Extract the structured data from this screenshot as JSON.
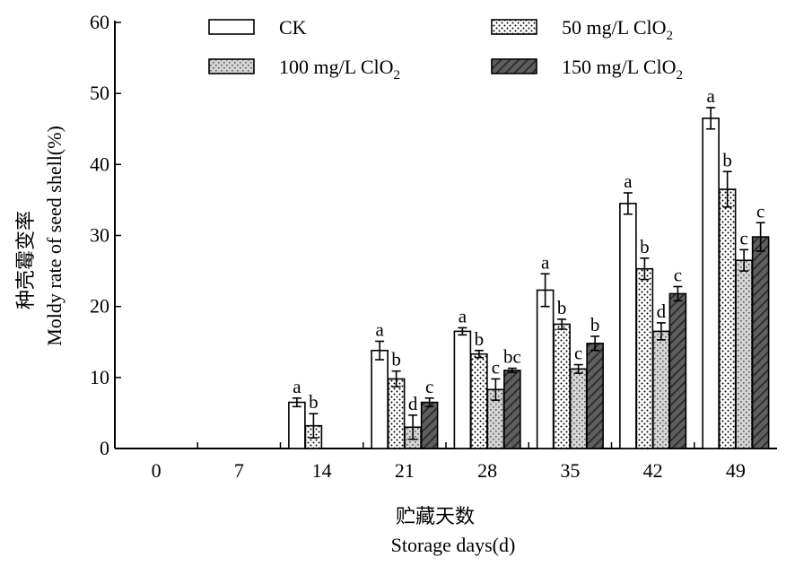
{
  "chart_data": {
    "type": "bar",
    "categories": [
      "0",
      "7",
      "14",
      "21",
      "28",
      "35",
      "42",
      "49"
    ],
    "series": [
      {
        "name": "CK",
        "fill": "white",
        "values": [
          0,
          0,
          6.5,
          13.8,
          16.5,
          22.3,
          34.5,
          46.5
        ],
        "errors": [
          0,
          0,
          0.6,
          1.3,
          0.5,
          2.3,
          1.5,
          1.5
        ],
        "letters": [
          "",
          "",
          "a",
          "a",
          "a",
          "a",
          "a",
          "a"
        ]
      },
      {
        "name": "50 mg/L ClO",
        "name_sub": "2",
        "fill": "dots",
        "values": [
          0,
          0,
          3.2,
          9.8,
          13.3,
          17.5,
          25.3,
          36.5
        ],
        "errors": [
          0,
          0,
          1.7,
          1.1,
          0.5,
          0.7,
          1.5,
          2.5
        ],
        "letters": [
          "",
          "",
          "b",
          "b",
          "b",
          "b",
          "b",
          "b"
        ]
      },
      {
        "name": "100 mg/L ClO",
        "name_sub": "2",
        "fill": "crosshatch",
        "values": [
          0,
          0,
          0,
          3.0,
          8.3,
          11.2,
          16.5,
          26.5
        ],
        "errors": [
          0,
          0,
          0,
          1.7,
          1.5,
          0.6,
          1.2,
          1.5
        ],
        "letters": [
          "",
          "",
          "",
          "d",
          "c",
          "c",
          "d",
          "c"
        ]
      },
      {
        "name": "150 mg/L ClO",
        "name_sub": "2",
        "fill": "stripes",
        "values": [
          0,
          0,
          0,
          6.5,
          11.0,
          14.8,
          21.8,
          29.8
        ],
        "errors": [
          0,
          0,
          0,
          0.6,
          0.3,
          1.0,
          1.0,
          2.0
        ],
        "letters": [
          "",
          "",
          "",
          "c",
          "bc",
          "b",
          "c",
          "c"
        ]
      }
    ],
    "ylim": [
      0,
      60
    ],
    "yticks": [
      0,
      10,
      20,
      30,
      40,
      50,
      60
    ],
    "ylabel_cn": "种壳霉变率",
    "ylabel": "Moldy rate of seed shell(%)",
    "xlabel_cn": "贮藏天数",
    "xlabel": "Storage days(d)",
    "legend": "top",
    "grid": false
  }
}
